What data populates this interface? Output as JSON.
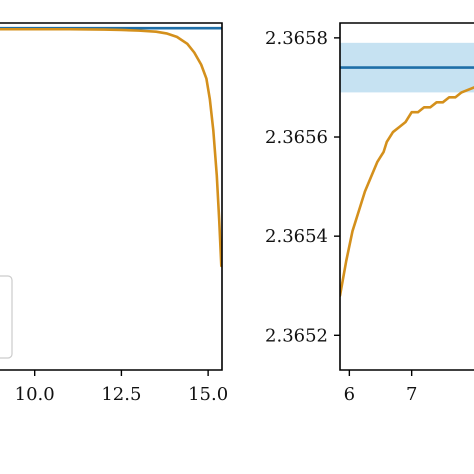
{
  "chart_data": [
    {
      "type": "line",
      "xlim": [
        9.0,
        15.4
      ],
      "ylim": [
        0.0,
        1.0
      ],
      "grid": false,
      "legend": "lower-left (partially visible, entries cut off)",
      "x_ticks": [
        {
          "value": 10.0,
          "label": "10.0"
        },
        {
          "value": 12.5,
          "label": "12.5"
        },
        {
          "value": 15.0,
          "label": "15.0"
        }
      ],
      "series": [
        {
          "color": "#1f6fa8",
          "x": [
            9.0,
            15.4
          ],
          "y": [
            0.985,
            0.985
          ]
        },
        {
          "color": "#d4901c",
          "x": [
            9.0,
            11.0,
            12.0,
            12.5,
            13.0,
            13.5,
            13.8,
            14.1,
            14.4,
            14.6,
            14.8,
            14.95,
            15.05,
            15.15,
            15.25,
            15.32,
            15.38
          ],
          "y": [
            0.982,
            0.982,
            0.981,
            0.98,
            0.978,
            0.975,
            0.97,
            0.96,
            0.94,
            0.915,
            0.88,
            0.84,
            0.78,
            0.69,
            0.56,
            0.43,
            0.3
          ]
        }
      ]
    },
    {
      "type": "line",
      "xlim": [
        5.85,
        8.0
      ],
      "ylim": [
        2.36513,
        2.36583
      ],
      "grid": false,
      "y_ticks": [
        {
          "value": 2.3652,
          "label": "2.3652"
        },
        {
          "value": 2.3654,
          "label": "2.3654"
        },
        {
          "value": 2.3656,
          "label": "2.3656"
        },
        {
          "value": 2.3658,
          "label": "2.3658"
        }
      ],
      "x_ticks": [
        {
          "value": 6,
          "label": "6"
        },
        {
          "value": 7,
          "label": "7"
        }
      ],
      "band": {
        "color": "#c6e2f2",
        "y_low": 2.36569,
        "y_high": 2.36579
      },
      "series": [
        {
          "color": "#1f6fa8",
          "x": [
            5.85,
            8.0
          ],
          "y": [
            2.36574,
            2.36574
          ]
        },
        {
          "color": "#d4901c",
          "x": [
            5.85,
            5.95,
            6.05,
            6.15,
            6.25,
            6.35,
            6.45,
            6.55,
            6.6,
            6.7,
            6.8,
            6.9,
            7.0,
            7.1,
            7.2,
            7.3,
            7.4,
            7.5,
            7.6,
            7.7,
            7.8,
            8.0
          ],
          "y": [
            2.36528,
            2.36535,
            2.36541,
            2.36545,
            2.36549,
            2.36552,
            2.36555,
            2.36557,
            2.36559,
            2.36561,
            2.36562,
            2.36563,
            2.36565,
            2.36565,
            2.36566,
            2.36566,
            2.36567,
            2.36567,
            2.36568,
            2.36568,
            2.36569,
            2.3657
          ]
        }
      ]
    }
  ]
}
